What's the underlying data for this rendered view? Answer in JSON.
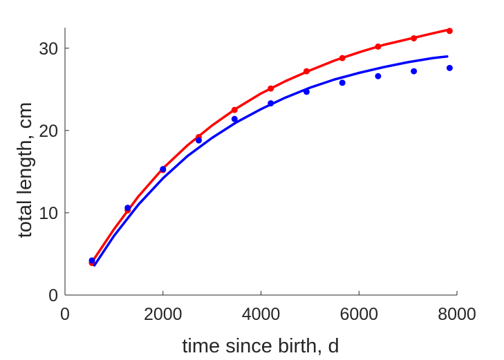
{
  "chart_data": {
    "type": "scatter",
    "title": "",
    "xlabel": "time since birth, d",
    "ylabel": "total length, cm",
    "xlim": [
      0,
      8000
    ],
    "ylim": [
      0,
      32.5
    ],
    "xticks": [
      0,
      2000,
      4000,
      6000,
      8000
    ],
    "yticks": [
      0,
      10,
      20,
      30
    ],
    "grid": false,
    "legend": "none",
    "series": [
      {
        "color": "#ff0000",
        "points": {
          "x": [
            550,
            1280,
            2000,
            2730,
            3460,
            4200,
            4930,
            5660,
            6390,
            7120,
            7850
          ],
          "y": [
            3.9,
            10.3,
            15.2,
            19.2,
            22.5,
            25.1,
            27.2,
            28.8,
            30.2,
            31.2,
            32.1
          ]
        },
        "curve": {
          "x": [
            550,
            1000,
            1500,
            2000,
            2500,
            3000,
            3500,
            4000,
            4500,
            5000,
            5500,
            6000,
            6500,
            7000,
            7500,
            7800
          ],
          "y": [
            4.0,
            8.0,
            12.0,
            15.4,
            18.2,
            20.6,
            22.7,
            24.5,
            26.0,
            27.3,
            28.5,
            29.5,
            30.4,
            31.1,
            31.8,
            32.2
          ]
        }
      },
      {
        "color": "#0000ff",
        "points": {
          "x": [
            550,
            1280,
            2000,
            2730,
            3460,
            4200,
            4930,
            5660,
            6390,
            7120,
            7850
          ],
          "y": [
            4.2,
            10.6,
            15.3,
            18.8,
            21.4,
            23.3,
            24.7,
            25.8,
            26.6,
            27.2,
            27.6
          ]
        },
        "curve": {
          "x": [
            600,
            1000,
            1500,
            2000,
            2500,
            3000,
            3500,
            4000,
            4500,
            5000,
            5500,
            6000,
            6500,
            7000,
            7500,
            7800
          ],
          "y": [
            3.6,
            7.2,
            11.0,
            14.2,
            16.9,
            19.1,
            21.0,
            22.6,
            24.0,
            25.2,
            26.2,
            27.0,
            27.7,
            28.3,
            28.8,
            29.0
          ]
        }
      }
    ]
  }
}
